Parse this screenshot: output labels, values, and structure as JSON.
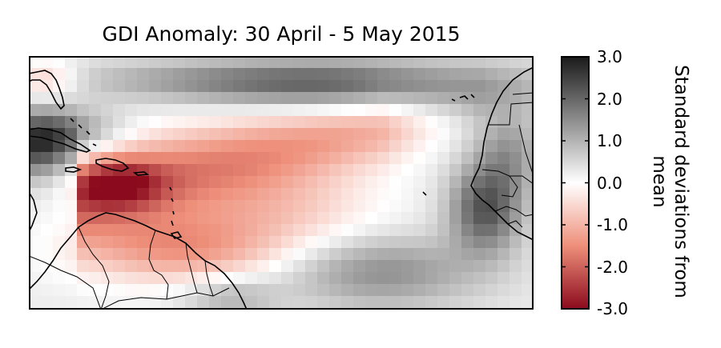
{
  "title": "GDI Anomaly: 30 April - 5 May 2015",
  "colorbar": {
    "label": "Standard deviations from mean",
    "ticks": [
      "3.0",
      "2.0",
      "1.0",
      "0.0",
      "-1.0",
      "-2.0",
      "-3.0"
    ],
    "tick_values": [
      3,
      2,
      1,
      0,
      -1,
      -2,
      -3
    ],
    "min": -3.0,
    "max": 3.0,
    "colormap": "red-white-gray (negative red, positive gray/black)"
  },
  "colors": {
    "neg_max": "#8b0a1d",
    "zero": "#ffffff",
    "pos_max": "#1a1a1a",
    "land_outline": "#000000"
  }
}
